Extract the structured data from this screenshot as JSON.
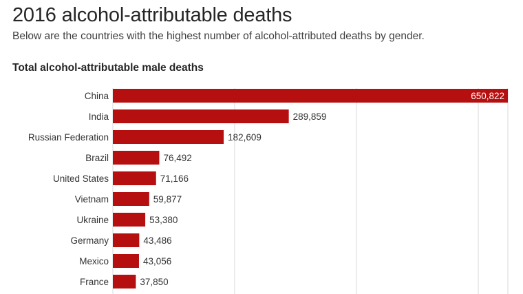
{
  "header": {
    "title": "2016 alcohol-attributable deaths",
    "subtitle": "Below are the countries with the highest number of alcohol-attributed deaths by gender."
  },
  "chart_data": {
    "type": "bar",
    "orientation": "horizontal",
    "title": "Total alcohol-attributable male deaths",
    "categories": [
      "China",
      "India",
      "Russian Federation",
      "Brazil",
      "United States",
      "Vietnam",
      "Ukraine",
      "Germany",
      "Mexico",
      "France"
    ],
    "values": [
      650822,
      289859,
      182609,
      76492,
      71166,
      59877,
      53380,
      43486,
      43056,
      37850
    ],
    "value_labels": [
      "650,822",
      "289,859",
      "182,609",
      "76,492",
      "71,166",
      "59,877",
      "53,380",
      "43,486",
      "43,056",
      "37,850"
    ],
    "xlim": [
      0,
      650822
    ],
    "grid": true,
    "bar_color": "#b50f0f",
    "grid_color": "#d9d9d9"
  }
}
